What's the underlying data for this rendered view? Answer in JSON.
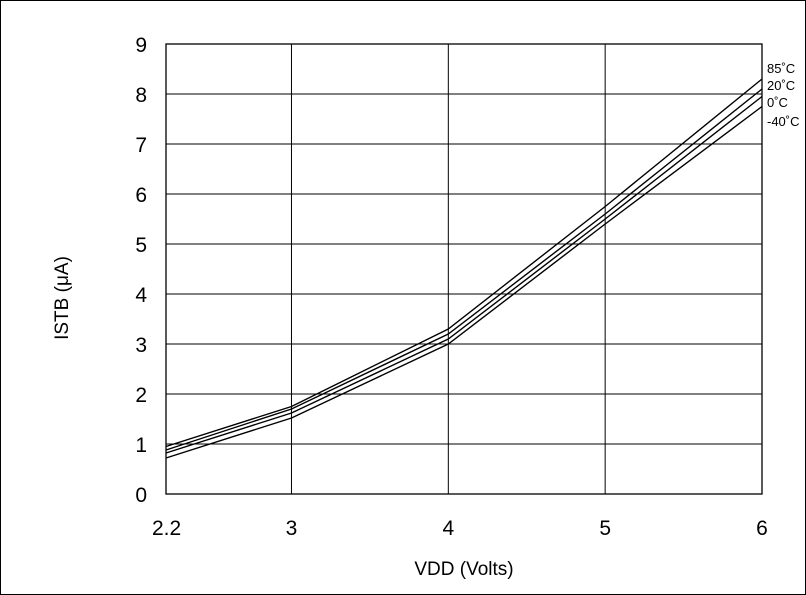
{
  "chart_data": {
    "type": "line",
    "title": "",
    "xlabel": "VDD (Volts)",
    "ylabel": "ISTB (μA)",
    "xlim": [
      2.2,
      6
    ],
    "ylim": [
      0,
      9
    ],
    "xticks": [
      {
        "value": 2.2,
        "label": "2.2"
      },
      {
        "value": 3,
        "label": "3"
      },
      {
        "value": 4,
        "label": "4"
      },
      {
        "value": 5,
        "label": "5"
      },
      {
        "value": 6,
        "label": "6"
      }
    ],
    "yticks": [
      {
        "value": 0,
        "label": "0"
      },
      {
        "value": 1,
        "label": "1"
      },
      {
        "value": 2,
        "label": "2"
      },
      {
        "value": 3,
        "label": "3"
      },
      {
        "value": 4,
        "label": "4"
      },
      {
        "value": 5,
        "label": "5"
      },
      {
        "value": 6,
        "label": "6"
      },
      {
        "value": 7,
        "label": "7"
      },
      {
        "value": 8,
        "label": "8"
      },
      {
        "value": 9,
        "label": "9"
      }
    ],
    "grid": true,
    "legend": "right-end line labels",
    "series": [
      {
        "name": "85˚C",
        "x": [
          2.2,
          3,
          4,
          5,
          6
        ],
        "y": [
          0.95,
          1.75,
          3.3,
          5.75,
          8.3
        ]
      },
      {
        "name": "20˚C",
        "x": [
          2.2,
          3,
          4,
          5,
          6
        ],
        "y": [
          0.88,
          1.7,
          3.2,
          5.6,
          8.1
        ]
      },
      {
        "name": "0˚C",
        "x": [
          2.2,
          3,
          4,
          5,
          6
        ],
        "y": [
          0.82,
          1.62,
          3.1,
          5.5,
          7.95
        ]
      },
      {
        "name": "-40˚C",
        "x": [
          2.2,
          3,
          4,
          5,
          6
        ],
        "y": [
          0.72,
          1.52,
          3.0,
          5.4,
          7.75
        ]
      }
    ]
  }
}
